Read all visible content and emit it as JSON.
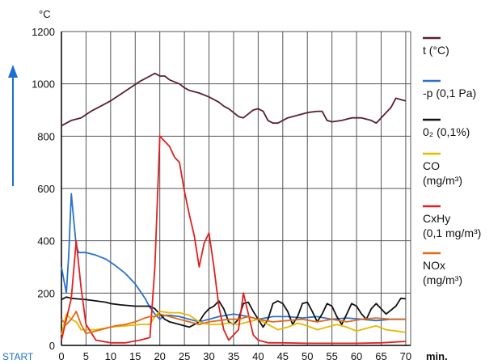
{
  "chart_data": {
    "type": "line",
    "xlabel": "min.",
    "x_start_label": "START",
    "y_unit_label": "°C",
    "xlim": [
      0,
      71
    ],
    "ylim": [
      0,
      1200
    ],
    "x_ticks": [
      0,
      5,
      10,
      15,
      20,
      25,
      30,
      35,
      40,
      45,
      50,
      55,
      60,
      65,
      70
    ],
    "y_ticks": [
      0,
      200,
      400,
      600,
      800,
      1000,
      1200
    ],
    "grid": true,
    "legend_position": "right",
    "series": [
      {
        "name": "t (°C)",
        "color": "#5a2030",
        "points": [
          [
            0,
            840
          ],
          [
            2,
            860
          ],
          [
            4,
            870
          ],
          [
            6,
            895
          ],
          [
            8,
            915
          ],
          [
            10,
            935
          ],
          [
            12,
            960
          ],
          [
            14,
            985
          ],
          [
            16,
            1010
          ],
          [
            18,
            1030
          ],
          [
            19,
            1040
          ],
          [
            20,
            1030
          ],
          [
            21,
            1030
          ],
          [
            22,
            1015
          ],
          [
            24,
            1000
          ],
          [
            25,
            985
          ],
          [
            26,
            975
          ],
          [
            28,
            965
          ],
          [
            30,
            950
          ],
          [
            31,
            940
          ],
          [
            32,
            930
          ],
          [
            33,
            915
          ],
          [
            34,
            905
          ],
          [
            35,
            890
          ],
          [
            36,
            875
          ],
          [
            37,
            870
          ],
          [
            38,
            885
          ],
          [
            39,
            900
          ],
          [
            40,
            905
          ],
          [
            41,
            895
          ],
          [
            42,
            860
          ],
          [
            43,
            850
          ],
          [
            44,
            850
          ],
          [
            45,
            860
          ],
          [
            46,
            870
          ],
          [
            48,
            880
          ],
          [
            50,
            890
          ],
          [
            52,
            895
          ],
          [
            53,
            895
          ],
          [
            54,
            860
          ],
          [
            55,
            855
          ],
          [
            57,
            860
          ],
          [
            59,
            870
          ],
          [
            61,
            870
          ],
          [
            63,
            860
          ],
          [
            64,
            850
          ],
          [
            65,
            870
          ],
          [
            66,
            890
          ],
          [
            67,
            910
          ],
          [
            68,
            945
          ],
          [
            69,
            940
          ],
          [
            70,
            935
          ]
        ]
      },
      {
        "name": "-p (0,1 Pa)",
        "color": "#2a72cc",
        "points": [
          [
            0,
            300
          ],
          [
            0.5,
            250
          ],
          [
            1,
            200
          ],
          [
            1.5,
            350
          ],
          [
            2,
            580
          ],
          [
            2.5,
            480
          ],
          [
            3,
            380
          ],
          [
            3.5,
            355
          ],
          [
            5,
            355
          ],
          [
            7,
            345
          ],
          [
            9,
            330
          ],
          [
            11,
            305
          ],
          [
            13,
            275
          ],
          [
            15,
            235
          ],
          [
            17,
            180
          ],
          [
            18,
            145
          ],
          [
            19,
            120
          ],
          [
            20,
            100
          ],
          [
            21,
            115
          ],
          [
            22,
            115
          ],
          [
            24,
            110
          ],
          [
            26,
            100
          ],
          [
            28,
            90
          ],
          [
            30,
            100
          ],
          [
            32,
            110
          ],
          [
            35,
            120
          ],
          [
            38,
            110
          ],
          [
            40,
            100
          ],
          [
            43,
            110
          ],
          [
            46,
            110
          ],
          [
            49,
            105
          ],
          [
            52,
            110
          ],
          [
            55,
            100
          ],
          [
            58,
            105
          ],
          [
            61,
            100
          ],
          [
            64,
            95
          ],
          [
            67,
            100
          ],
          [
            70,
            100
          ]
        ]
      },
      {
        "name": "0₂ (0,1%)",
        "color": "#111111",
        "points": [
          [
            0,
            175
          ],
          [
            1,
            185
          ],
          [
            2,
            180
          ],
          [
            3,
            178
          ],
          [
            5,
            175
          ],
          [
            7,
            170
          ],
          [
            9,
            165
          ],
          [
            10,
            160
          ],
          [
            12,
            155
          ],
          [
            15,
            150
          ],
          [
            17,
            150
          ],
          [
            18,
            150
          ],
          [
            19,
            140
          ],
          [
            20,
            120
          ],
          [
            21,
            100
          ],
          [
            22,
            90
          ],
          [
            24,
            80
          ],
          [
            26,
            70
          ],
          [
            28,
            90
          ],
          [
            29,
            120
          ],
          [
            30,
            140
          ],
          [
            31,
            150
          ],
          [
            32,
            170
          ],
          [
            33,
            140
          ],
          [
            34,
            90
          ],
          [
            35,
            80
          ],
          [
            36,
            100
          ],
          [
            37,
            160
          ],
          [
            38,
            165
          ],
          [
            39,
            130
          ],
          [
            40,
            100
          ],
          [
            41,
            70
          ],
          [
            42,
            100
          ],
          [
            43,
            160
          ],
          [
            44,
            170
          ],
          [
            45,
            160
          ],
          [
            46,
            130
          ],
          [
            47,
            80
          ],
          [
            48,
            110
          ],
          [
            49,
            160
          ],
          [
            50,
            165
          ],
          [
            51,
            130
          ],
          [
            52,
            90
          ],
          [
            53,
            120
          ],
          [
            54,
            160
          ],
          [
            55,
            150
          ],
          [
            56,
            110
          ],
          [
            57,
            80
          ],
          [
            58,
            120
          ],
          [
            59,
            160
          ],
          [
            60,
            150
          ],
          [
            61,
            120
          ],
          [
            62,
            100
          ],
          [
            63,
            140
          ],
          [
            64,
            160
          ],
          [
            65,
            140
          ],
          [
            66,
            120
          ],
          [
            67,
            135
          ],
          [
            68,
            150
          ],
          [
            69,
            180
          ],
          [
            70,
            178
          ]
        ]
      },
      {
        "name": "CO",
        "unit": "(mg/m³)",
        "color": "#e8b800",
        "points": [
          [
            0,
            40
          ],
          [
            1,
            120
          ],
          [
            2,
            100
          ],
          [
            3,
            90
          ],
          [
            4,
            60
          ],
          [
            5,
            60
          ],
          [
            7,
            60
          ],
          [
            10,
            70
          ],
          [
            13,
            75
          ],
          [
            16,
            80
          ],
          [
            18,
            80
          ],
          [
            19,
            110
          ],
          [
            20,
            130
          ],
          [
            22,
            125
          ],
          [
            24,
            125
          ],
          [
            26,
            115
          ],
          [
            28,
            90
          ],
          [
            30,
            80
          ],
          [
            32,
            80
          ],
          [
            34,
            85
          ],
          [
            36,
            80
          ],
          [
            38,
            90
          ],
          [
            40,
            100
          ],
          [
            42,
            80
          ],
          [
            44,
            60
          ],
          [
            46,
            70
          ],
          [
            48,
            85
          ],
          [
            50,
            75
          ],
          [
            52,
            60
          ],
          [
            54,
            70
          ],
          [
            56,
            80
          ],
          [
            58,
            70
          ],
          [
            60,
            55
          ],
          [
            62,
            65
          ],
          [
            64,
            75
          ],
          [
            66,
            60
          ],
          [
            68,
            55
          ],
          [
            70,
            50
          ]
        ]
      },
      {
        "name": "CxHy",
        "unit": "(0,1 mg/m³)",
        "color": "#e02020",
        "points": [
          [
            0,
            20
          ],
          [
            1,
            100
          ],
          [
            2,
            180
          ],
          [
            3,
            400
          ],
          [
            4,
            220
          ],
          [
            5,
            80
          ],
          [
            7,
            20
          ],
          [
            10,
            10
          ],
          [
            13,
            10
          ],
          [
            16,
            20
          ],
          [
            18,
            30
          ],
          [
            19,
            300
          ],
          [
            20,
            800
          ],
          [
            21,
            780
          ],
          [
            22,
            760
          ],
          [
            23,
            720
          ],
          [
            24,
            700
          ],
          [
            25,
            590
          ],
          [
            26,
            500
          ],
          [
            27,
            420
          ],
          [
            28,
            300
          ],
          [
            29,
            390
          ],
          [
            30,
            430
          ],
          [
            31,
            300
          ],
          [
            32,
            150
          ],
          [
            33,
            60
          ],
          [
            34,
            20
          ],
          [
            36,
            60
          ],
          [
            37,
            200
          ],
          [
            38,
            120
          ],
          [
            39,
            40
          ],
          [
            40,
            20
          ],
          [
            42,
            10
          ],
          [
            45,
            10
          ],
          [
            50,
            8
          ],
          [
            55,
            8
          ],
          [
            60,
            8
          ],
          [
            65,
            10
          ],
          [
            70,
            15
          ]
        ]
      },
      {
        "name": "NOx",
        "unit": "(mg/m³)",
        "color": "#e26a1a",
        "points": [
          [
            0,
            100
          ],
          [
            1,
            80
          ],
          [
            2,
            100
          ],
          [
            3,
            130
          ],
          [
            4,
            80
          ],
          [
            5,
            45
          ],
          [
            7,
            55
          ],
          [
            9,
            65
          ],
          [
            11,
            75
          ],
          [
            13,
            80
          ],
          [
            15,
            90
          ],
          [
            17,
            105
          ],
          [
            18,
            110
          ],
          [
            19,
            110
          ],
          [
            20,
            120
          ],
          [
            22,
            110
          ],
          [
            24,
            100
          ],
          [
            26,
            90
          ],
          [
            28,
            80
          ],
          [
            30,
            90
          ],
          [
            32,
            95
          ],
          [
            34,
            100
          ],
          [
            36,
            100
          ],
          [
            38,
            110
          ],
          [
            40,
            100
          ],
          [
            43,
            90
          ],
          [
            46,
            95
          ],
          [
            49,
            100
          ],
          [
            52,
            90
          ],
          [
            55,
            100
          ],
          [
            58,
            90
          ],
          [
            61,
            100
          ],
          [
            64,
            105
          ],
          [
            67,
            100
          ],
          [
            70,
            100
          ]
        ]
      }
    ]
  }
}
